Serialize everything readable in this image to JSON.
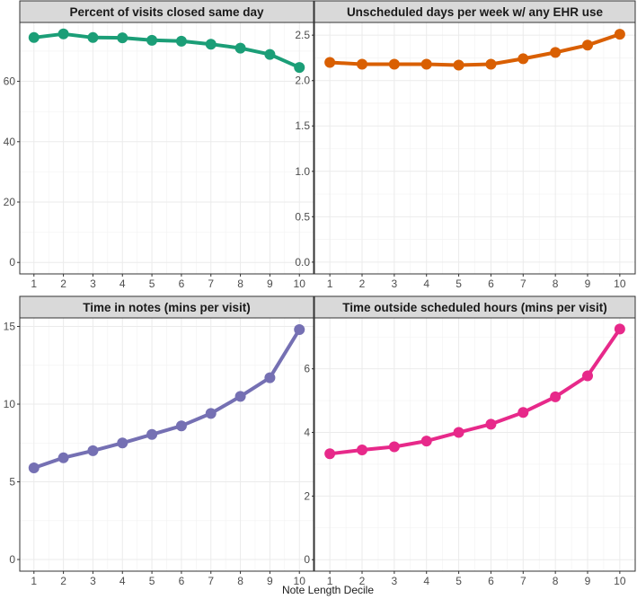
{
  "figure": {
    "xlabel": "Note Length Decile"
  },
  "chart_data": [
    {
      "type": "line",
      "title": "Percent of visits closed same day",
      "x": [
        1,
        2,
        3,
        4,
        5,
        6,
        7,
        8,
        9,
        10
      ],
      "values": [
        74.5,
        75.7,
        74.5,
        74.4,
        73.6,
        73.3,
        72.3,
        71.0,
        68.9,
        64.6
      ],
      "yticks": [
        0,
        20,
        40,
        60
      ],
      "ylim": [
        -3.8,
        79.5
      ],
      "color": "#1b9e77",
      "grid": true
    },
    {
      "type": "line",
      "title": "Unscheduled days per week w/ any EHR use",
      "x": [
        1,
        2,
        3,
        4,
        5,
        6,
        7,
        8,
        9,
        10
      ],
      "values": [
        2.2,
        2.18,
        2.18,
        2.18,
        2.17,
        2.18,
        2.24,
        2.31,
        2.39,
        2.51
      ],
      "yticks": [
        "0.0",
        "0.5",
        "1.0",
        "1.5",
        "2.0",
        "2.5"
      ],
      "ylim": [
        -0.13,
        2.64
      ],
      "color": "#d95f02",
      "grid": true
    },
    {
      "type": "line",
      "title": "Time in notes (mins per visit)",
      "x": [
        1,
        2,
        3,
        4,
        5,
        6,
        7,
        8,
        9,
        10
      ],
      "values": [
        5.9,
        6.55,
        7.0,
        7.5,
        8.05,
        8.6,
        9.4,
        10.5,
        11.7,
        14.8
      ],
      "yticks": [
        0,
        5,
        10,
        15
      ],
      "ylim": [
        -0.75,
        15.55
      ],
      "color": "#7570b3",
      "grid": true
    },
    {
      "type": "line",
      "title": "Time outside scheduled hours (mins per visit)",
      "x": [
        1,
        2,
        3,
        4,
        5,
        6,
        7,
        8,
        9,
        10
      ],
      "values": [
        3.33,
        3.45,
        3.55,
        3.73,
        4.0,
        4.26,
        4.63,
        5.12,
        5.78,
        7.25
      ],
      "yticks": [
        0,
        2,
        4,
        6
      ],
      "ylim": [
        -0.36,
        7.6
      ],
      "color": "#e7298a",
      "grid": true
    }
  ]
}
